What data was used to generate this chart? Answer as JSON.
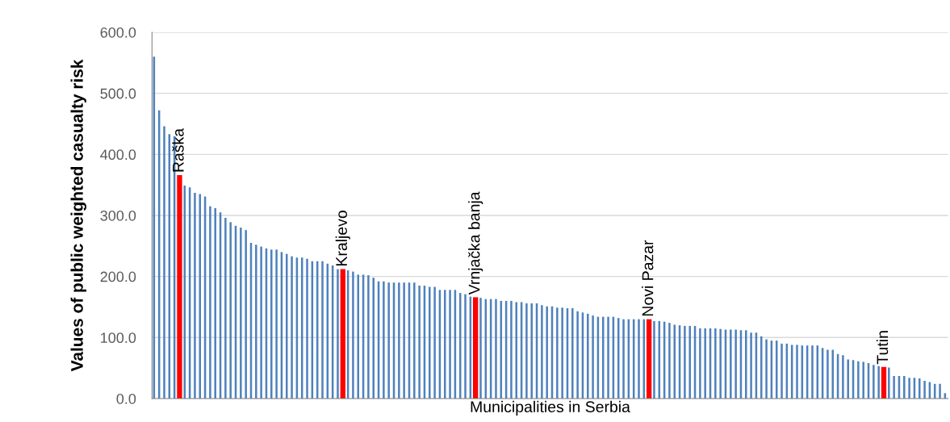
{
  "chart_data": {
    "type": "bar",
    "xlabel": "Municipalities in Serbia",
    "ylabel": "Values of public weighted casualty risk",
    "categories": [
      null,
      null,
      null,
      null,
      null,
      "Raška",
      null,
      null,
      null,
      null,
      null,
      null,
      null,
      null,
      null,
      null,
      null,
      null,
      null,
      null,
      null,
      null,
      null,
      null,
      null,
      null,
      null,
      null,
      null,
      null,
      null,
      null,
      null,
      null,
      null,
      null,
      null,
      "Kraljevo",
      null,
      null,
      null,
      null,
      null,
      null,
      null,
      null,
      null,
      null,
      null,
      null,
      null,
      null,
      null,
      null,
      null,
      null,
      null,
      null,
      null,
      null,
      null,
      null,
      null,
      "Vrnjačka banja",
      null,
      null,
      null,
      null,
      null,
      null,
      null,
      null,
      null,
      null,
      null,
      null,
      null,
      null,
      null,
      null,
      null,
      null,
      null,
      null,
      null,
      null,
      null,
      null,
      null,
      null,
      null,
      null,
      null,
      null,
      null,
      null,
      null,
      "Novi Pazar",
      null,
      null,
      null,
      null,
      null,
      null,
      null,
      null,
      null,
      null,
      null,
      null,
      null,
      null,
      null,
      null,
      null,
      null,
      null,
      null,
      null,
      null,
      null,
      null,
      null,
      null,
      null,
      null,
      null,
      null,
      null,
      null,
      null,
      null,
      null,
      null,
      null,
      null,
      null,
      null,
      null,
      null,
      null,
      null,
      null,
      "Tutin",
      null,
      null,
      null,
      null,
      null,
      null,
      null,
      null,
      null,
      null,
      null,
      null
    ],
    "values": [
      560,
      472,
      446,
      433,
      430,
      366,
      349,
      346,
      337,
      335,
      331,
      315,
      312,
      305,
      296,
      289,
      283,
      280,
      276,
      255,
      252,
      249,
      246,
      244,
      244,
      240,
      237,
      233,
      231,
      231,
      229,
      225,
      225,
      225,
      221,
      218,
      212,
      212,
      210,
      208,
      203,
      203,
      202,
      198,
      192,
      192,
      190,
      190,
      190,
      190,
      190,
      190,
      185,
      185,
      183,
      183,
      178,
      178,
      178,
      178,
      173,
      171,
      167,
      166,
      165,
      163,
      163,
      163,
      160,
      160,
      160,
      158,
      158,
      156,
      156,
      156,
      153,
      151,
      151,
      149,
      149,
      148,
      148,
      143,
      141,
      139,
      136,
      134,
      134,
      134,
      134,
      132,
      130,
      130,
      130,
      130,
      130,
      130,
      127,
      127,
      126,
      124,
      121,
      120,
      119,
      119,
      119,
      115,
      115,
      115,
      115,
      114,
      113,
      113,
      113,
      112,
      112,
      108,
      108,
      102,
      97,
      95,
      95,
      90,
      90,
      88,
      88,
      87,
      87,
      87,
      87,
      83,
      80,
      80,
      73,
      71,
      64,
      63,
      61,
      60,
      58,
      55,
      53,
      52,
      51,
      37,
      37,
      37,
      34,
      34,
      33,
      29,
      27,
      24,
      24,
      9
    ],
    "colors": [
      "#4f81bd",
      "#4f81bd",
      "#4f81bd",
      "#4f81bd",
      "#4f81bd",
      "#ff0000",
      "#4f81bd",
      "#4f81bd",
      "#4f81bd",
      "#4f81bd",
      "#4f81bd",
      "#4f81bd",
      "#4f81bd",
      "#4f81bd",
      "#4f81bd",
      "#4f81bd",
      "#4f81bd",
      "#4f81bd",
      "#4f81bd",
      "#4f81bd",
      "#4f81bd",
      "#4f81bd",
      "#4f81bd",
      "#4f81bd",
      "#4f81bd",
      "#4f81bd",
      "#4f81bd",
      "#4f81bd",
      "#4f81bd",
      "#4f81bd",
      "#4f81bd",
      "#4f81bd",
      "#4f81bd",
      "#4f81bd",
      "#4f81bd",
      "#4f81bd",
      "#4f81bd",
      "#ff0000",
      "#4f81bd",
      "#4f81bd",
      "#4f81bd",
      "#4f81bd",
      "#4f81bd",
      "#4f81bd",
      "#4f81bd",
      "#4f81bd",
      "#4f81bd",
      "#4f81bd",
      "#4f81bd",
      "#4f81bd",
      "#4f81bd",
      "#4f81bd",
      "#4f81bd",
      "#4f81bd",
      "#4f81bd",
      "#4f81bd",
      "#4f81bd",
      "#4f81bd",
      "#4f81bd",
      "#4f81bd",
      "#4f81bd",
      "#4f81bd",
      "#4f81bd",
      "#ff0000",
      "#4f81bd",
      "#4f81bd",
      "#4f81bd",
      "#4f81bd",
      "#4f81bd",
      "#4f81bd",
      "#4f81bd",
      "#4f81bd",
      "#4f81bd",
      "#4f81bd",
      "#4f81bd",
      "#4f81bd",
      "#4f81bd",
      "#4f81bd",
      "#4f81bd",
      "#4f81bd",
      "#4f81bd",
      "#4f81bd",
      "#4f81bd",
      "#4f81bd",
      "#4f81bd",
      "#4f81bd",
      "#4f81bd",
      "#4f81bd",
      "#4f81bd",
      "#4f81bd",
      "#4f81bd",
      "#4f81bd",
      "#4f81bd",
      "#4f81bd",
      "#4f81bd",
      "#4f81bd",
      "#4f81bd",
      "#ff0000",
      "#4f81bd",
      "#4f81bd",
      "#4f81bd",
      "#4f81bd",
      "#4f81bd",
      "#4f81bd",
      "#4f81bd",
      "#4f81bd",
      "#4f81bd",
      "#4f81bd",
      "#4f81bd",
      "#4f81bd",
      "#4f81bd",
      "#4f81bd",
      "#4f81bd",
      "#4f81bd",
      "#4f81bd",
      "#4f81bd",
      "#4f81bd",
      "#4f81bd",
      "#4f81bd",
      "#4f81bd",
      "#4f81bd",
      "#4f81bd",
      "#4f81bd",
      "#4f81bd",
      "#4f81bd",
      "#4f81bd",
      "#4f81bd",
      "#4f81bd",
      "#4f81bd",
      "#4f81bd",
      "#4f81bd",
      "#4f81bd",
      "#4f81bd",
      "#4f81bd",
      "#4f81bd",
      "#4f81bd",
      "#4f81bd",
      "#4f81bd",
      "#4f81bd",
      "#4f81bd",
      "#4f81bd",
      "#4f81bd",
      "#4f81bd",
      "#ff0000",
      "#4f81bd",
      "#4f81bd",
      "#4f81bd",
      "#4f81bd",
      "#4f81bd",
      "#4f81bd",
      "#4f81bd",
      "#4f81bd",
      "#4f81bd",
      "#4f81bd",
      "#4f81bd",
      "#4f81bd"
    ],
    "ylim": [
      0,
      600
    ],
    "yticks": [
      {
        "value": 0,
        "label": "0.0"
      },
      {
        "value": 100,
        "label": "100.0"
      },
      {
        "value": 200,
        "label": "200.0"
      },
      {
        "value": 300,
        "label": "300.0"
      },
      {
        "value": 400,
        "label": "400.0"
      },
      {
        "value": 500,
        "label": "500.0"
      },
      {
        "value": 600,
        "label": "600.0"
      }
    ],
    "grid": "y",
    "tick_labels": "y"
  }
}
